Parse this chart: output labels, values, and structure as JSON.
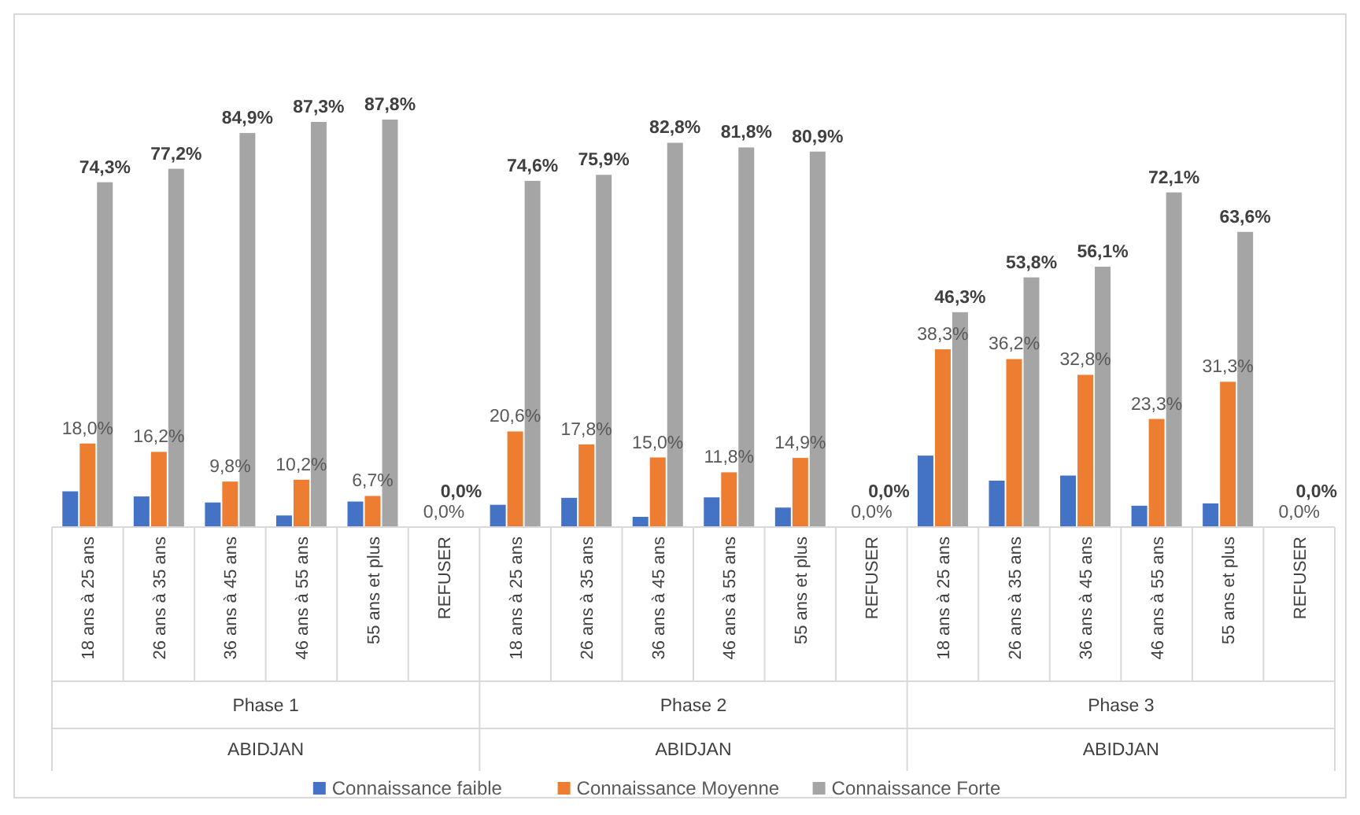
{
  "chart_data": {
    "type": "bar",
    "relative": false,
    "categories": [
      "18 ans à 25 ans",
      "26 ans à 35 ans",
      "36 ans à 45 ans",
      "46 ans à 55 ans",
      "55 ans et plus",
      "REFUSER",
      "18 ans à 25 ans",
      "26 ans à 35 ans",
      "36 ans à 45 ans",
      "46 ans à 55 ans",
      "55 ans et plus",
      "REFUSER",
      "18 ans à 25 ans",
      "26 ans à 35 ans",
      "36 ans à 45 ans",
      "46 ans à 55 ans",
      "55 ans et plus",
      "REFUSER"
    ],
    "series": [
      {
        "name": "Connaissance faible",
        "color": "#4472c4",
        "values": [
          7.7,
          6.6,
          5.3,
          2.5,
          5.5,
          0,
          4.8,
          6.3,
          2.2,
          6.4,
          4.2,
          0,
          15.4,
          10,
          11.1,
          4.6,
          5.1,
          0
        ]
      },
      {
        "name": "Connaissance Moyenne",
        "color": "#ed7d31",
        "values": [
          18.0,
          16.2,
          9.8,
          10.2,
          6.7,
          0,
          20.6,
          17.8,
          15.0,
          11.8,
          14.9,
          0,
          38.3,
          36.2,
          32.8,
          23.3,
          31.3,
          0
        ],
        "value_labels": [
          "18,0%",
          "16,2%",
          "9,8%",
          "10,2%",
          "6,7%",
          "0,0%",
          "20,6%",
          "17,8%",
          "15,0%",
          "11,8%",
          "14,9%",
          "0,0%",
          "38,3%",
          "36,2%",
          "32,8%",
          "23,3%",
          "31,3%",
          "0,0%"
        ]
      },
      {
        "name": "Connaissance Forte",
        "color": "#a5a5a5",
        "values": [
          74.3,
          77.2,
          84.9,
          87.3,
          87.8,
          0,
          74.6,
          75.9,
          82.8,
          81.8,
          80.9,
          0,
          46.3,
          53.8,
          56.1,
          72.1,
          63.6,
          0
        ],
        "value_labels": [
          "74,3%",
          "77,2%",
          "84,9%",
          "87,3%",
          "87,8%",
          "0,0%",
          "74,6%",
          "75,9%",
          "82,8%",
          "81,8%",
          "80,9%",
          "0,0%",
          "46,3%",
          "53,8%",
          "56,1%",
          "72,1%",
          "63,6%",
          "0,0%"
        ]
      }
    ],
    "annotations": [
      "Phase 1",
      "Phase 2",
      "Phase 3",
      "ABIDJAN",
      "ABIDJAN",
      "ABIDJAN"
    ],
    "legend": "bottom"
  }
}
